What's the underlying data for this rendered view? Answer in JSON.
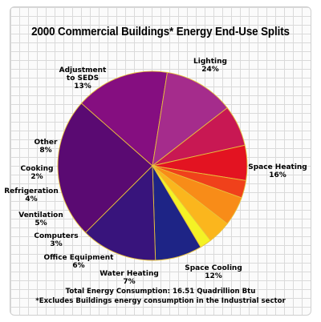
{
  "chart_data": {
    "type": "pie",
    "title": "2000 Commercial Buildings* Energy End-Use Splits",
    "unit": "%",
    "start_category": "Lighting",
    "direction": "clockwise",
    "slices": [
      {
        "label": "Lighting",
        "value": 24,
        "color": "#5a0a72"
      },
      {
        "label": "Space Heating",
        "value": 16,
        "color": "#850e80"
      },
      {
        "label": "Space Cooling",
        "value": 12,
        "color": "#a52c8c"
      },
      {
        "label": "Water Heating",
        "value": 7,
        "color": "#c81853"
      },
      {
        "label": "Office Equipment",
        "value": 6,
        "color": "#e31321"
      },
      {
        "label": "Computers",
        "value": 3,
        "color": "#f0411b"
      },
      {
        "label": "Ventilation",
        "value": 5,
        "color": "#f88c18"
      },
      {
        "label": "Refrigeration",
        "value": 4,
        "color": "#fbb61d"
      },
      {
        "label": "Cooking",
        "value": 2,
        "color": "#f4f225"
      },
      {
        "label": "Other",
        "value": 8,
        "color": "#1e2486"
      },
      {
        "label": "Adjustment to SEDS",
        "value": 13,
        "color": "#38147c"
      }
    ],
    "edge_color": "#e8c13c"
  },
  "footer": {
    "total": "Total Energy Consumption: 16.51 Quadrillion Btu",
    "note": "*Excludes Buildings energy consumption in the Industrial sector"
  }
}
